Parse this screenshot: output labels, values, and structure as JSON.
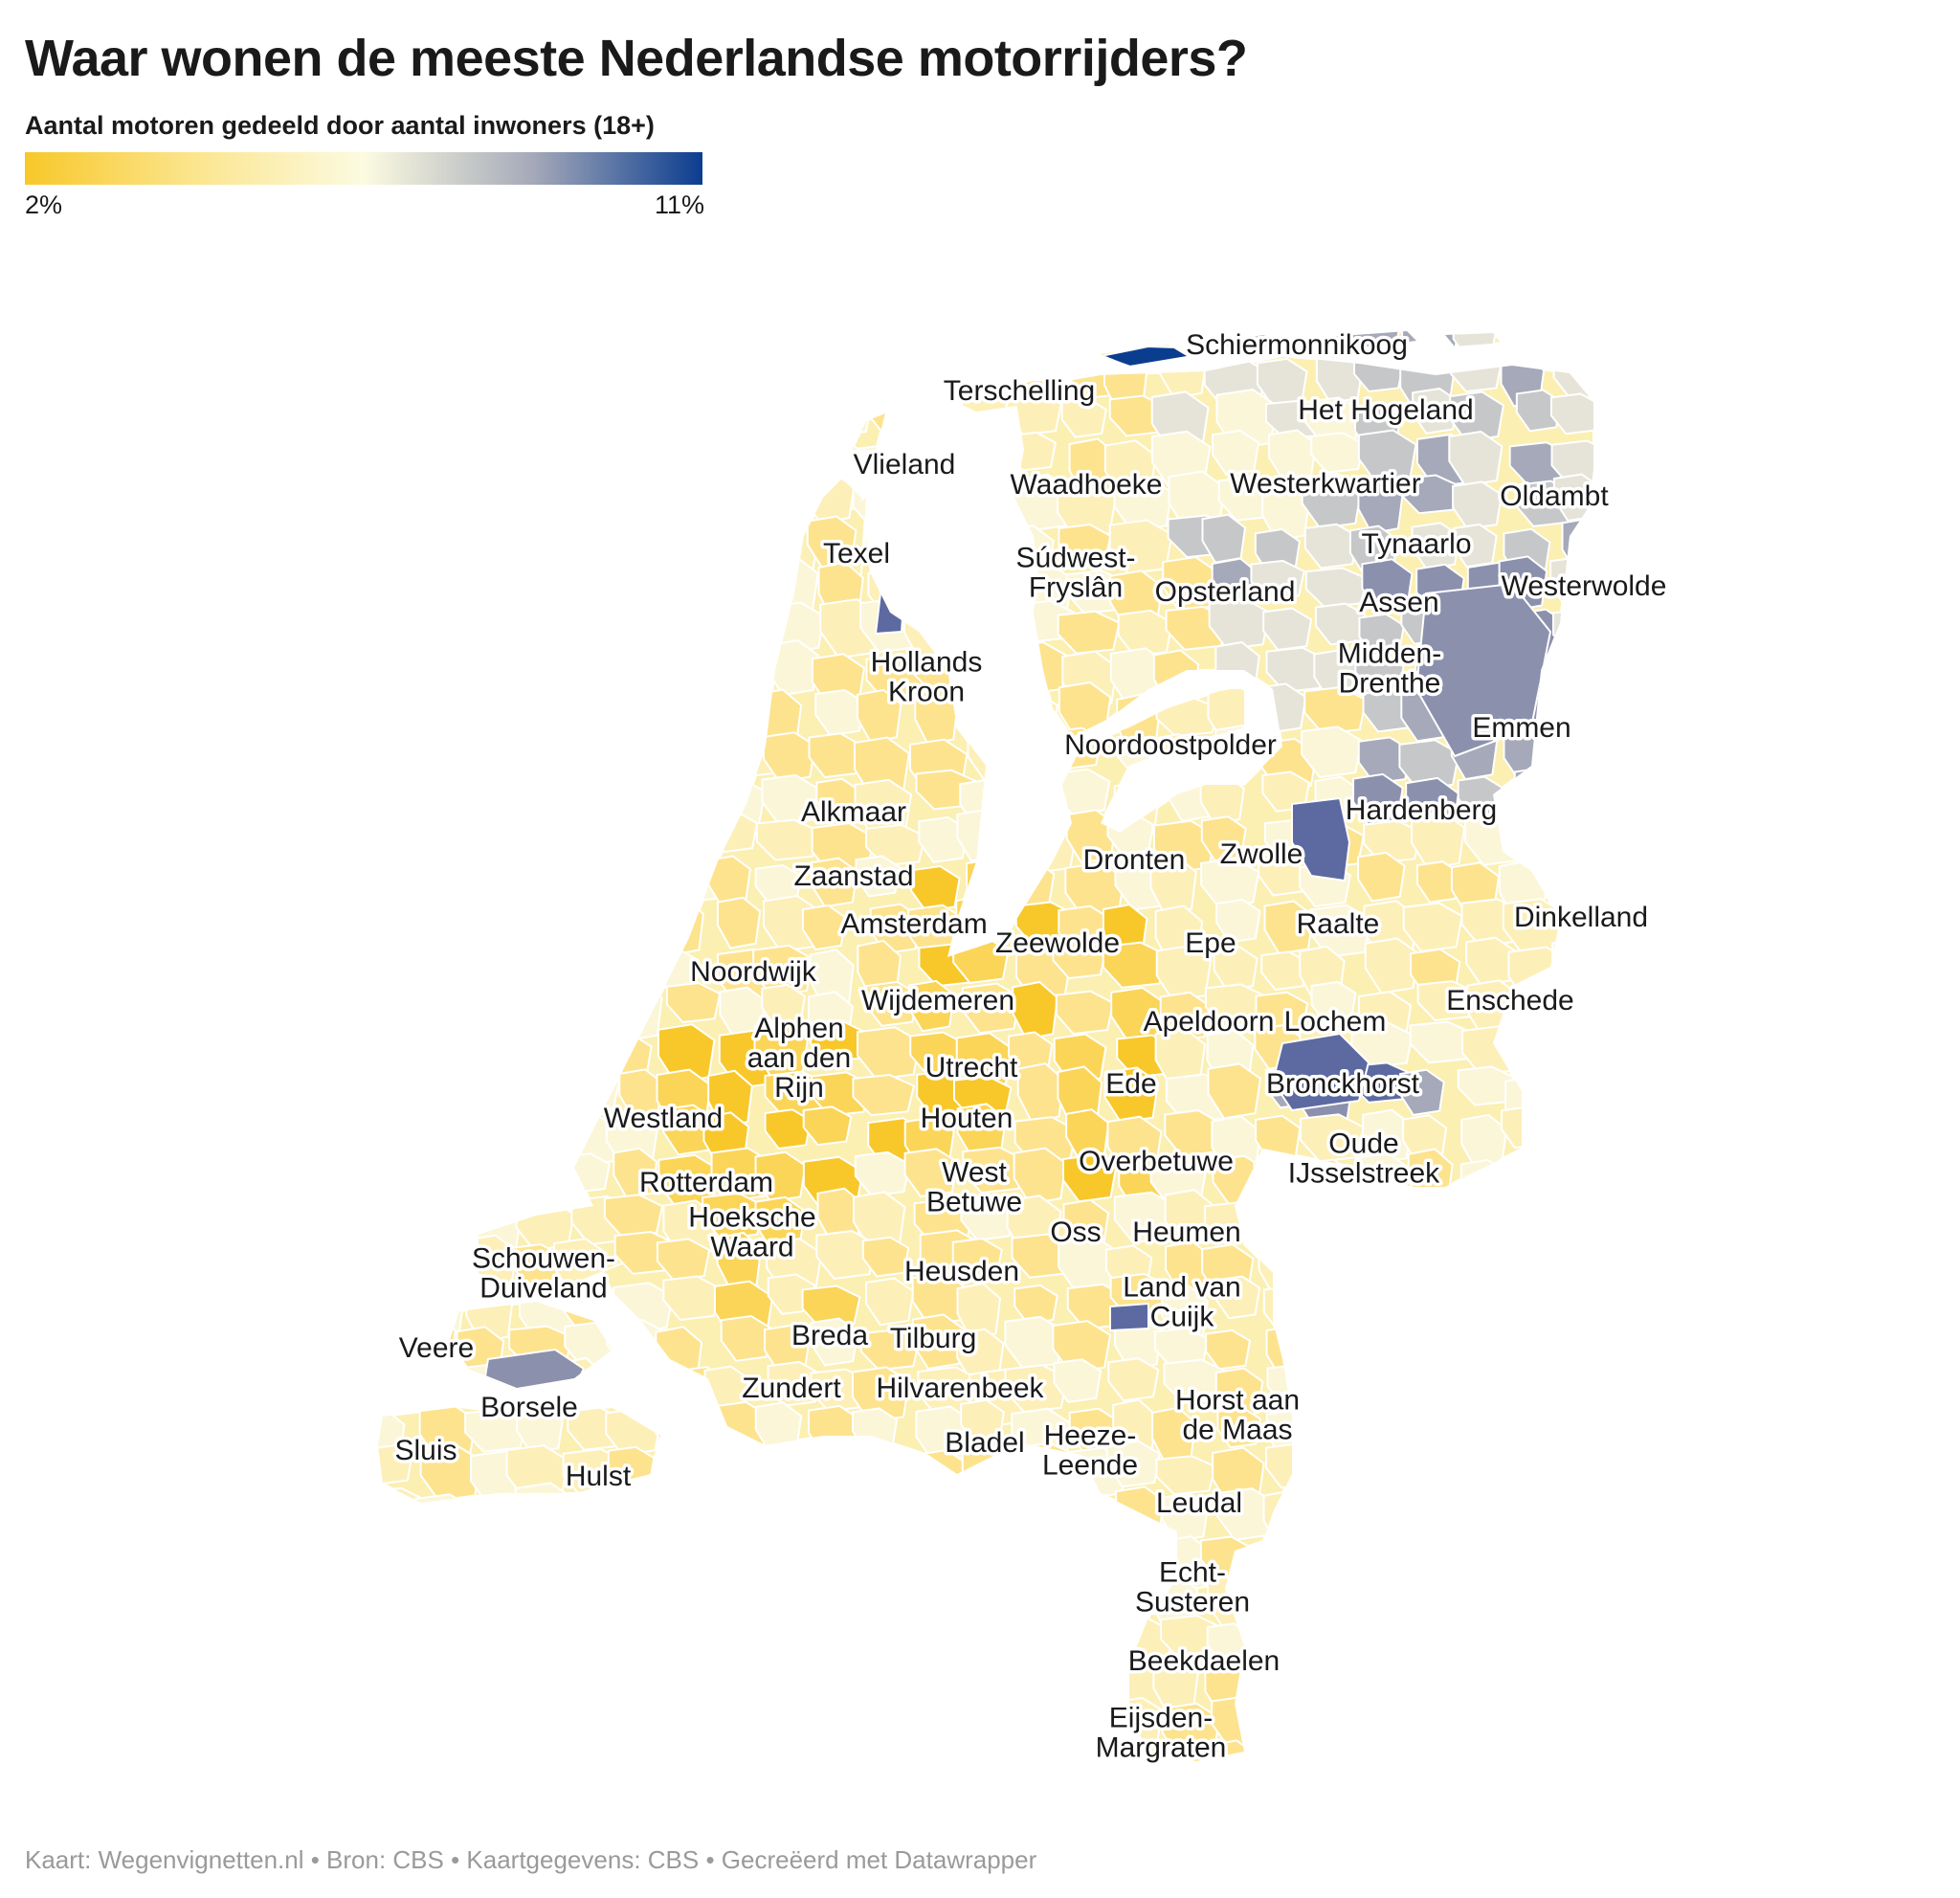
{
  "title": "Waar wonen de meeste Nederlandse motorrijders?",
  "legend": {
    "title": "Aantal motoren gedeeld door aantal inwoners (18+)",
    "min_label": "2%",
    "max_label": "11%",
    "colors": [
      "#f8c82a",
      "#fbe58e",
      "#fcfbe1",
      "#a5a9b9",
      "#0b3d8f"
    ]
  },
  "footer": "Kaart: Wegenvignetten.nl • Bron: CBS • Kaartgegevens: CBS • Gecreëerd met Datawrapper",
  "labels": [
    {
      "lines": [
        "Schiermonnikoog"
      ]
    },
    {
      "lines": [
        "Terschelling"
      ]
    },
    {
      "lines": [
        "Het Hogeland"
      ]
    },
    {
      "lines": [
        "Vlieland"
      ]
    },
    {
      "lines": [
        "Waadhoeke"
      ]
    },
    {
      "lines": [
        "Westerkwartier"
      ]
    },
    {
      "lines": [
        "Oldambt"
      ]
    },
    {
      "lines": [
        "Texel"
      ]
    },
    {
      "lines": [
        "Tynaarlo"
      ]
    },
    {
      "lines": [
        "Súdwest-",
        "Fryslân"
      ]
    },
    {
      "lines": [
        "Opsterland"
      ]
    },
    {
      "lines": [
        "Assen"
      ]
    },
    {
      "lines": [
        "Westerwolde"
      ]
    },
    {
      "lines": [
        "Hollands",
        "Kroon"
      ]
    },
    {
      "lines": [
        "Midden-",
        "Drenthe"
      ]
    },
    {
      "lines": [
        "Emmen"
      ]
    },
    {
      "lines": [
        "Noordoostpolder"
      ]
    },
    {
      "lines": [
        "Hardenberg"
      ]
    },
    {
      "lines": [
        "Alkmaar"
      ]
    },
    {
      "lines": [
        "Dronten"
      ]
    },
    {
      "lines": [
        "Zwolle"
      ]
    },
    {
      "lines": [
        "Zaanstad"
      ]
    },
    {
      "lines": [
        "Dinkelland"
      ]
    },
    {
      "lines": [
        "Amsterdam"
      ]
    },
    {
      "lines": [
        "Raalte"
      ]
    },
    {
      "lines": [
        "Zeewolde"
      ]
    },
    {
      "lines": [
        "Epe"
      ]
    },
    {
      "lines": [
        "Noordwijk"
      ]
    },
    {
      "lines": [
        "Wijdemeren"
      ]
    },
    {
      "lines": [
        "Enschede"
      ]
    },
    {
      "lines": [
        "Apeldoorn"
      ]
    },
    {
      "lines": [
        "Lochem"
      ]
    },
    {
      "lines": [
        "Alphen",
        "aan den",
        "Rijn"
      ]
    },
    {
      "lines": [
        "Utrecht"
      ]
    },
    {
      "lines": [
        "Ede"
      ]
    },
    {
      "lines": [
        "Bronckhorst"
      ]
    },
    {
      "lines": [
        "Westland"
      ]
    },
    {
      "lines": [
        "Houten"
      ]
    },
    {
      "lines": [
        "Overbetuwe"
      ]
    },
    {
      "lines": [
        "Oude",
        "IJsselstreek"
      ]
    },
    {
      "lines": [
        "Rotterdam"
      ]
    },
    {
      "lines": [
        "West",
        "Betuwe"
      ]
    },
    {
      "lines": [
        "Oss"
      ]
    },
    {
      "lines": [
        "Heumen"
      ]
    },
    {
      "lines": [
        "Hoeksche",
        "Waard"
      ]
    },
    {
      "lines": [
        "Schouwen-",
        "Duiveland"
      ]
    },
    {
      "lines": [
        "Heusden"
      ]
    },
    {
      "lines": [
        "Land van",
        "Cuijk"
      ]
    },
    {
      "lines": [
        "Breda"
      ]
    },
    {
      "lines": [
        "Tilburg"
      ]
    },
    {
      "lines": [
        "Veere"
      ]
    },
    {
      "lines": [
        "Zundert"
      ]
    },
    {
      "lines": [
        "Hilvarenbeek"
      ]
    },
    {
      "lines": [
        "Borsele"
      ]
    },
    {
      "lines": [
        "Horst aan",
        "de Maas"
      ]
    },
    {
      "lines": [
        "Sluis"
      ]
    },
    {
      "lines": [
        "Bladel"
      ]
    },
    {
      "lines": [
        "Heeze-",
        "Leende"
      ]
    },
    {
      "lines": [
        "Hulst"
      ]
    },
    {
      "lines": [
        "Leudal"
      ]
    },
    {
      "lines": [
        "Echt-",
        "Susteren"
      ]
    },
    {
      "lines": [
        "Beekdaelen"
      ]
    },
    {
      "lines": [
        "Eijsden-",
        "Margraten"
      ]
    }
  ]
}
